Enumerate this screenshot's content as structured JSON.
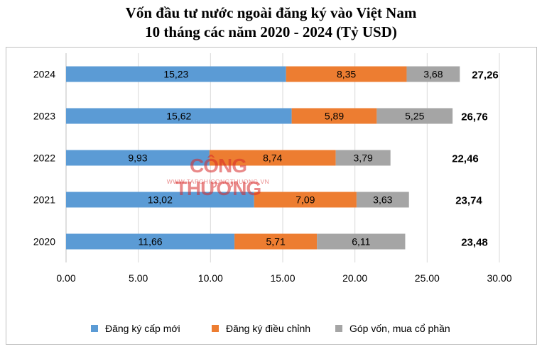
{
  "chart_data": {
    "type": "bar",
    "orientation": "horizontal",
    "stacked": true,
    "title": "Vốn đầu tư nước ngoài đăng ký vào Việt Nam",
    "subtitle": "10 tháng các năm 2020 - 2024 (Tỷ USD)",
    "categories": [
      "2024",
      "2023",
      "2022",
      "2021",
      "2020"
    ],
    "series": [
      {
        "name": "Đăng ký cấp mới",
        "color": "#5b9bd5",
        "values": [
          15.23,
          15.62,
          9.93,
          13.02,
          11.66
        ],
        "labels": [
          "15,23",
          "15,62",
          "9,93",
          "13,02",
          "11,66"
        ]
      },
      {
        "name": "Đăng ký điều chỉnh",
        "color": "#ed7d31",
        "values": [
          8.35,
          5.89,
          8.74,
          7.09,
          5.71
        ],
        "labels": [
          "8,35",
          "5,89",
          "8,74",
          "7,09",
          "5,71"
        ]
      },
      {
        "name": "Góp vốn, mua cổ phần",
        "color": "#a5a5a5",
        "values": [
          3.68,
          5.25,
          3.79,
          3.63,
          6.11
        ],
        "labels": [
          "3,68",
          "5,25",
          "3,79",
          "3,63",
          "6,11"
        ]
      }
    ],
    "totals": [
      "27,26",
      "26,76",
      "22,46",
      "23,74",
      "23,48"
    ],
    "xlim": [
      0,
      30
    ],
    "xticks": [
      0,
      5,
      10,
      15,
      20,
      25,
      30
    ],
    "xtick_labels": [
      "0.00",
      "5.00",
      "10.00",
      "15.00",
      "20.00",
      "25.00",
      "30.00"
    ],
    "grid": "vertical",
    "legend": "bottom"
  },
  "watermark": {
    "text": "CÔNG THƯƠNG",
    "subtext": "WWW.TAPCHICONGTHUONG.VN"
  }
}
